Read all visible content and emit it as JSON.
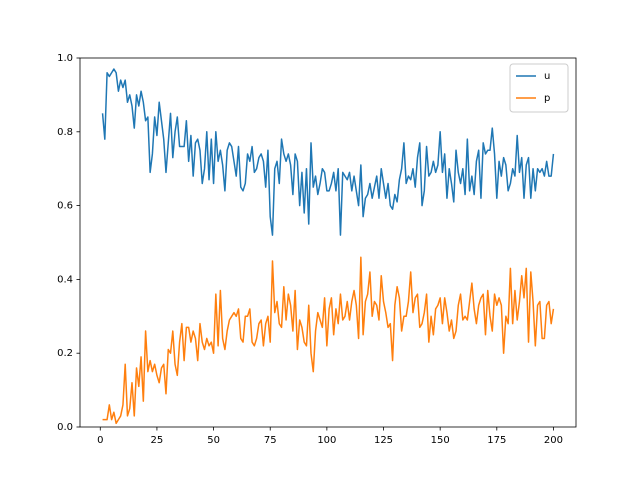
{
  "chart_data": {
    "type": "line",
    "x": [
      1,
      2,
      3,
      4,
      5,
      6,
      7,
      8,
      9,
      10,
      11,
      12,
      13,
      14,
      15,
      16,
      17,
      18,
      19,
      20,
      21,
      22,
      23,
      24,
      25,
      26,
      27,
      28,
      29,
      30,
      31,
      32,
      33,
      34,
      35,
      36,
      37,
      38,
      39,
      40,
      41,
      42,
      43,
      44,
      45,
      46,
      47,
      48,
      49,
      50,
      51,
      52,
      53,
      54,
      55,
      56,
      57,
      58,
      59,
      60,
      61,
      62,
      63,
      64,
      65,
      66,
      67,
      68,
      69,
      70,
      71,
      72,
      73,
      74,
      75,
      76,
      77,
      78,
      79,
      80,
      81,
      82,
      83,
      84,
      85,
      86,
      87,
      88,
      89,
      90,
      91,
      92,
      93,
      94,
      95,
      96,
      97,
      98,
      99,
      100,
      101,
      102,
      103,
      104,
      105,
      106,
      107,
      108,
      109,
      110,
      111,
      112,
      113,
      114,
      115,
      116,
      117,
      118,
      119,
      120,
      121,
      122,
      123,
      124,
      125,
      126,
      127,
      128,
      129,
      130,
      131,
      132,
      133,
      134,
      135,
      136,
      137,
      138,
      139,
      140,
      141,
      142,
      143,
      144,
      145,
      146,
      147,
      148,
      149,
      150,
      151,
      152,
      153,
      154,
      155,
      156,
      157,
      158,
      159,
      160,
      161,
      162,
      163,
      164,
      165,
      166,
      167,
      168,
      169,
      170,
      171,
      172,
      173,
      174,
      175,
      176,
      177,
      178,
      179,
      180,
      181,
      182,
      183,
      184,
      185,
      186,
      187,
      188,
      189,
      190,
      191,
      192,
      193,
      194,
      195,
      196,
      197,
      198,
      199,
      200
    ],
    "series": [
      {
        "name": "u",
        "color": "#1f77b4",
        "values": [
          0.85,
          0.78,
          0.96,
          0.95,
          0.96,
          0.97,
          0.96,
          0.91,
          0.94,
          0.92,
          0.94,
          0.88,
          0.9,
          0.87,
          0.81,
          0.9,
          0.87,
          0.91,
          0.88,
          0.83,
          0.84,
          0.69,
          0.74,
          0.84,
          0.79,
          0.88,
          0.83,
          0.78,
          0.69,
          0.77,
          0.85,
          0.73,
          0.8,
          0.84,
          0.76,
          0.76,
          0.76,
          0.83,
          0.72,
          0.79,
          0.68,
          0.77,
          0.78,
          0.75,
          0.66,
          0.7,
          0.8,
          0.67,
          0.78,
          0.66,
          0.8,
          0.72,
          0.75,
          0.71,
          0.64,
          0.75,
          0.77,
          0.76,
          0.72,
          0.68,
          0.76,
          0.65,
          0.64,
          0.66,
          0.74,
          0.72,
          0.76,
          0.69,
          0.7,
          0.73,
          0.74,
          0.72,
          0.65,
          0.75,
          0.57,
          0.52,
          0.7,
          0.72,
          0.66,
          0.78,
          0.74,
          0.72,
          0.74,
          0.71,
          0.63,
          0.74,
          0.72,
          0.6,
          0.69,
          0.58,
          0.7,
          0.55,
          0.77,
          0.65,
          0.68,
          0.63,
          0.66,
          0.7,
          0.69,
          0.64,
          0.64,
          0.66,
          0.69,
          0.64,
          0.7,
          0.52,
          0.69,
          0.68,
          0.67,
          0.69,
          0.64,
          0.68,
          0.64,
          0.6,
          0.71,
          0.57,
          0.62,
          0.63,
          0.66,
          0.62,
          0.65,
          0.68,
          0.62,
          0.7,
          0.66,
          0.62,
          0.66,
          0.6,
          0.59,
          0.63,
          0.61,
          0.67,
          0.7,
          0.77,
          0.66,
          0.68,
          0.67,
          0.7,
          0.65,
          0.73,
          0.77,
          0.6,
          0.64,
          0.76,
          0.68,
          0.69,
          0.72,
          0.69,
          0.71,
          0.8,
          0.69,
          0.74,
          0.62,
          0.7,
          0.66,
          0.61,
          0.75,
          0.69,
          0.66,
          0.7,
          0.63,
          0.78,
          0.64,
          0.68,
          0.63,
          0.72,
          0.75,
          0.62,
          0.77,
          0.74,
          0.75,
          0.75,
          0.81,
          0.74,
          0.62,
          0.72,
          0.68,
          0.73,
          0.71,
          0.64,
          0.66,
          0.7,
          0.68,
          0.79,
          0.69,
          0.73,
          0.62,
          0.71,
          0.73,
          0.62,
          0.7,
          0.64,
          0.7,
          0.69,
          0.7,
          0.68,
          0.72,
          0.68,
          0.68,
          0.74
        ]
      },
      {
        "name": "p",
        "color": "#ff7f0e",
        "values": [
          0.02,
          0.02,
          0.02,
          0.06,
          0.02,
          0.04,
          0.01,
          0.02,
          0.03,
          0.06,
          0.17,
          0.03,
          0.05,
          0.12,
          0.03,
          0.16,
          0.11,
          0.19,
          0.07,
          0.26,
          0.15,
          0.18,
          0.15,
          0.17,
          0.14,
          0.12,
          0.16,
          0.17,
          0.09,
          0.21,
          0.2,
          0.26,
          0.17,
          0.14,
          0.23,
          0.28,
          0.18,
          0.27,
          0.27,
          0.23,
          0.26,
          0.24,
          0.18,
          0.28,
          0.23,
          0.21,
          0.24,
          0.22,
          0.23,
          0.2,
          0.36,
          0.22,
          0.37,
          0.24,
          0.21,
          0.26,
          0.29,
          0.3,
          0.31,
          0.3,
          0.32,
          0.24,
          0.23,
          0.3,
          0.3,
          0.32,
          0.23,
          0.22,
          0.24,
          0.28,
          0.29,
          0.22,
          0.28,
          0.3,
          0.23,
          0.45,
          0.31,
          0.34,
          0.28,
          0.27,
          0.38,
          0.29,
          0.36,
          0.33,
          0.26,
          0.37,
          0.21,
          0.29,
          0.27,
          0.23,
          0.22,
          0.33,
          0.2,
          0.15,
          0.26,
          0.31,
          0.29,
          0.27,
          0.35,
          0.22,
          0.32,
          0.35,
          0.25,
          0.32,
          0.28,
          0.36,
          0.29,
          0.3,
          0.34,
          0.29,
          0.34,
          0.37,
          0.33,
          0.24,
          0.46,
          0.25,
          0.34,
          0.36,
          0.42,
          0.3,
          0.34,
          0.33,
          0.29,
          0.41,
          0.34,
          0.31,
          0.27,
          0.28,
          0.18,
          0.33,
          0.38,
          0.35,
          0.26,
          0.3,
          0.3,
          0.34,
          0.42,
          0.31,
          0.35,
          0.36,
          0.27,
          0.28,
          0.31,
          0.36,
          0.23,
          0.3,
          0.25,
          0.32,
          0.33,
          0.35,
          0.28,
          0.35,
          0.31,
          0.26,
          0.29,
          0.24,
          0.26,
          0.33,
          0.36,
          0.29,
          0.3,
          0.29,
          0.34,
          0.39,
          0.32,
          0.28,
          0.33,
          0.35,
          0.36,
          0.25,
          0.37,
          0.3,
          0.26,
          0.36,
          0.33,
          0.35,
          0.33,
          0.2,
          0.3,
          0.28,
          0.43,
          0.28,
          0.37,
          0.29,
          0.34,
          0.41,
          0.35,
          0.43,
          0.23,
          0.42,
          0.34,
          0.22,
          0.33,
          0.34,
          0.24,
          0.24,
          0.33,
          0.34,
          0.28,
          0.32
        ]
      }
    ],
    "xlim": [
      -8.95,
      209.95
    ],
    "xticks": [
      0,
      25,
      50,
      75,
      100,
      125,
      150,
      175,
      200
    ],
    "ylim": [
      0,
      1
    ],
    "yticks": [
      {
        "value": 0,
        "label": "0.0"
      },
      0.2,
      0.4,
      0.6,
      0.8,
      {
        "value": 1,
        "label": "1.0"
      }
    ],
    "grid": false,
    "legend": "upper right"
  }
}
